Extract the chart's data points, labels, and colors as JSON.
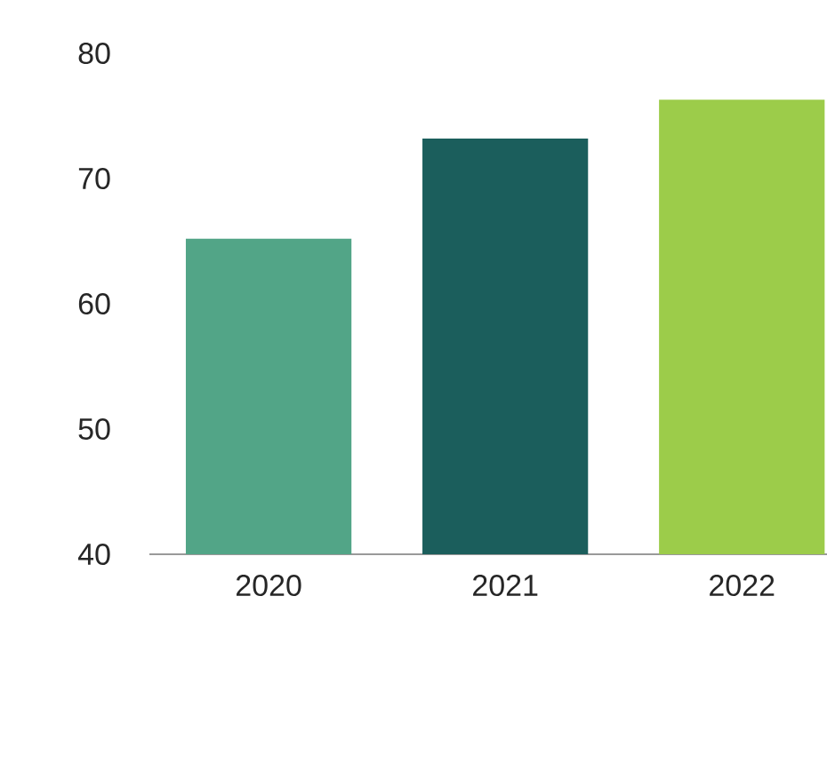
{
  "chart_data": {
    "type": "bar",
    "categories": [
      "2020",
      "2021",
      "2022"
    ],
    "values": [
      65.2,
      73.2,
      76.3
    ],
    "colors": [
      "#52a587",
      "#1b5e5c",
      "#9ccc4a"
    ],
    "ylim": [
      40,
      80
    ],
    "yticks": [
      40,
      50,
      60,
      70,
      80
    ],
    "grid": false
  }
}
